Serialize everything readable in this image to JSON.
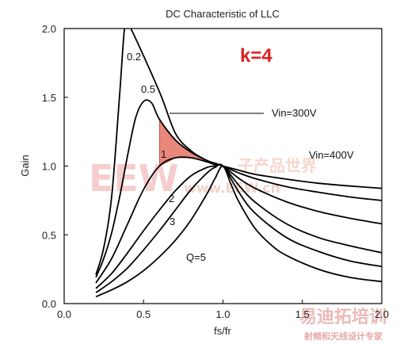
{
  "chart_data": {
    "type": "line",
    "title": "DC Characteristic of LLC",
    "xlabel": "fs/fr",
    "ylabel": "Gain",
    "xlim": [
      0.0,
      2.0
    ],
    "ylim": [
      0.0,
      2.0
    ],
    "xticks": [
      "0.0",
      "0.5",
      "1.0",
      "1.5",
      "2.0"
    ],
    "yticks": [
      "0.0",
      "0.5",
      "1.0",
      "1.5",
      "2.0"
    ],
    "grid": false,
    "k_label": "k=4",
    "curve_color": "#000000",
    "region_color": "#e06050",
    "series": [
      {
        "name": "0.2",
        "x": [
          0.2,
          0.25,
          0.3,
          0.35,
          0.38,
          0.4,
          0.42,
          0.6,
          0.7,
          0.8,
          0.9,
          0.95,
          1.0,
          1.1,
          1.2,
          1.4,
          1.6,
          1.8,
          2.0
        ],
        "values": [
          0.21,
          0.41,
          0.79,
          1.53,
          2.0,
          2.0,
          2.0,
          1.54,
          1.24,
          1.11,
          1.04,
          1.02,
          1.0,
          0.97,
          0.94,
          0.905,
          0.875,
          0.855,
          0.838
        ]
      },
      {
        "name": "0.5",
        "x": [
          0.2,
          0.25,
          0.3,
          0.35,
          0.4,
          0.45,
          0.5,
          0.55,
          0.6,
          0.7,
          0.8,
          0.9,
          0.95,
          1.0,
          1.1,
          1.2,
          1.4,
          1.6,
          1.8,
          2.0
        ],
        "values": [
          0.19,
          0.33,
          0.52,
          0.78,
          1.08,
          1.35,
          1.47,
          1.46,
          1.34,
          1.19,
          1.1,
          1.04,
          1.02,
          1.0,
          0.95,
          0.91,
          0.85,
          0.81,
          0.775,
          0.75
        ]
      },
      {
        "name": "1",
        "x": [
          0.2,
          0.3,
          0.4,
          0.5,
          0.6,
          0.7,
          0.8,
          0.9,
          0.95,
          1.0,
          1.1,
          1.2,
          1.4,
          1.6,
          1.8,
          2.0
        ],
        "values": [
          0.15,
          0.33,
          0.58,
          0.83,
          1.0,
          1.06,
          1.06,
          1.03,
          1.01,
          1.0,
          0.91,
          0.84,
          0.74,
          0.67,
          0.62,
          0.58
        ]
      },
      {
        "name": "2",
        "x": [
          0.2,
          0.3,
          0.4,
          0.5,
          0.6,
          0.7,
          0.8,
          0.9,
          0.95,
          1.0,
          1.1,
          1.2,
          1.4,
          1.6,
          1.8,
          2.0
        ],
        "values": [
          0.11,
          0.22,
          0.37,
          0.53,
          0.68,
          0.82,
          0.93,
          0.99,
          1.0,
          1.0,
          0.86,
          0.74,
          0.58,
          0.48,
          0.42,
          0.37
        ]
      },
      {
        "name": "3",
        "x": [
          0.2,
          0.3,
          0.4,
          0.5,
          0.6,
          0.7,
          0.8,
          0.9,
          0.95,
          1.0,
          1.1,
          1.2,
          1.4,
          1.6,
          1.8,
          2.0
        ],
        "values": [
          0.08,
          0.16,
          0.26,
          0.39,
          0.53,
          0.68,
          0.83,
          0.95,
          0.99,
          1.0,
          0.81,
          0.66,
          0.48,
          0.38,
          0.31,
          0.27
        ]
      },
      {
        "name": "Q=5",
        "x": [
          0.2,
          0.3,
          0.4,
          0.5,
          0.6,
          0.7,
          0.8,
          0.9,
          0.95,
          1.0,
          1.05,
          1.1,
          1.2,
          1.3,
          1.4,
          1.6,
          1.8,
          2.0
        ],
        "values": [
          0.05,
          0.1,
          0.16,
          0.24,
          0.34,
          0.46,
          0.61,
          0.8,
          0.91,
          1.0,
          0.87,
          0.74,
          0.55,
          0.43,
          0.35,
          0.25,
          0.19,
          0.16
        ]
      }
    ],
    "annotations": [
      {
        "text": "Vin=300V"
      },
      {
        "text": "Vin=400V"
      }
    ]
  },
  "watermark": {
    "brand": "EEW",
    "cn_text": "子产品世界",
    "url_text": "www.EEW.cn",
    "bottom_cn": "易迪拓培训",
    "bottom_sub": "射频和天线设计专家"
  }
}
